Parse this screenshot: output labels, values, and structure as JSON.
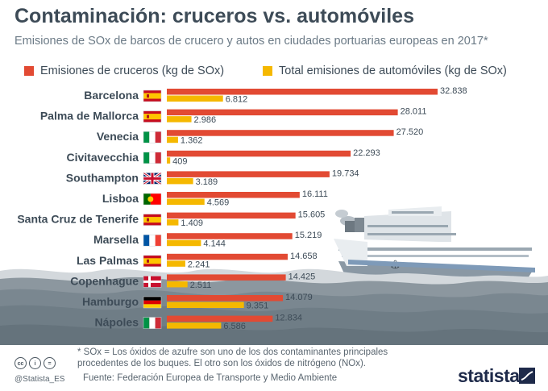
{
  "header": {
    "title": "Contaminación: cruceros vs. automóviles",
    "subtitle": "Emisiones de SOx de barcos de crucero y autos en ciudades portuarias europeas en 2017*"
  },
  "legend": {
    "cruise_label": "Emisiones de cruceros (kg de SOx)",
    "car_label": "Total emisiones de automóviles (kg de SOx)"
  },
  "colors": {
    "cruise": "#e24a33",
    "car": "#f5b800",
    "text": "#3d4b57",
    "sea_dark": "#6f7d86",
    "ship_hull": "#8a98a4"
  },
  "chart_data": {
    "type": "bar",
    "orientation": "horizontal",
    "title": "Contaminación: cruceros vs. automóviles",
    "categories": [
      "Barcelona",
      "Palma de Mallorca",
      "Venecia",
      "Civitavecchia",
      "Southampton",
      "Lisboa",
      "Santa Cruz de Tenerife",
      "Marsella",
      "Las Palmas",
      "Copenhague",
      "Hamburgo",
      "Nápoles"
    ],
    "flags": [
      "es",
      "es",
      "it",
      "it",
      "gb",
      "pt",
      "es",
      "fr",
      "es",
      "dk",
      "de",
      "it"
    ],
    "series": [
      {
        "name": "Emisiones de cruceros (kg de SOx)",
        "color": "#e24a33",
        "values": [
          32838,
          28011,
          27520,
          22293,
          19734,
          16111,
          15605,
          15219,
          14658,
          14425,
          14079,
          12834
        ],
        "labels": [
          "32.838",
          "28.011",
          "27.520",
          "22.293",
          "19.734",
          "16.111",
          "15.605",
          "15.219",
          "14.658",
          "14.425",
          "14.079",
          "12.834"
        ]
      },
      {
        "name": "Total emisiones de automóviles (kg de SOx)",
        "color": "#f5b800",
        "values": [
          6812,
          2986,
          1362,
          409,
          3189,
          4569,
          1409,
          4144,
          2241,
          2511,
          9351,
          6586
        ],
        "labels": [
          "6.812",
          "2.986",
          "1.362",
          "409",
          "3.189",
          "4.569",
          "1.409",
          "4.144",
          "2.241",
          "2.511",
          "9.351",
          "6.586"
        ]
      }
    ],
    "xlim": [
      0,
      35000
    ],
    "grid": false,
    "legend_position": "top"
  },
  "footer": {
    "note": "* SOx = Los óxidos de azufre son uno de los dos contaminantes principales procedentes de los buques. El otro son los óxidos de nitrógeno (NOx).",
    "source": "Fuente: Federación Europea de Transporte y Medio Ambiente",
    "handle": "@Statista_ES",
    "brand": "statista",
    "license_icons": [
      "cc",
      "i",
      "="
    ]
  }
}
